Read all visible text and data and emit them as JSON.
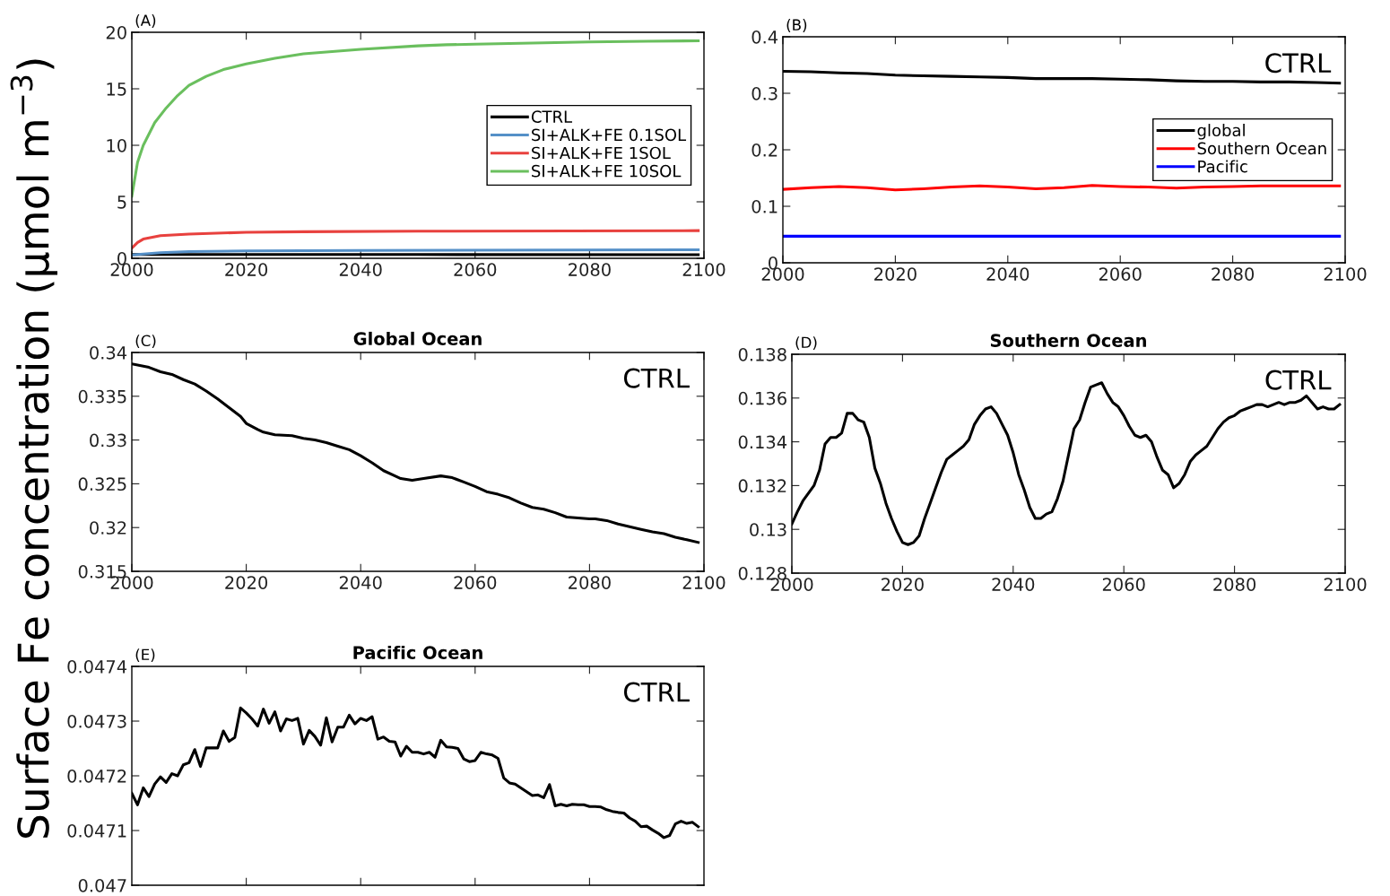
{
  "chart_data": [
    {
      "type": "line",
      "annotations": [
        "(A)"
      ],
      "ylabel": "Surface Fe concentration (μmol m$^{−3}$)",
      "xlim": [
        2000,
        2100
      ],
      "xticks": [
        2000,
        2020,
        2040,
        2060,
        2080,
        2100
      ],
      "ylim": [
        0,
        20
      ],
      "yticks": [
        0,
        5,
        10,
        15,
        20
      ],
      "legend": "right",
      "series": [
        {
          "name": "CTRL",
          "color": "#000000",
          "x": [
            2000,
            2050,
            2099
          ],
          "values": [
            0.34,
            0.33,
            0.32
          ]
        },
        {
          "name": "SI+ALK+FE 0.1SOL",
          "color": "#5590c8",
          "x": [
            2000,
            2005,
            2010,
            2020,
            2040,
            2099
          ],
          "values": [
            0.3,
            0.5,
            0.6,
            0.65,
            0.7,
            0.75
          ]
        },
        {
          "name": "SI+ALK+FE 1SOL",
          "color": "#e8413e",
          "x": [
            2000,
            2001,
            2002,
            2005,
            2010,
            2020,
            2030,
            2050,
            2099
          ],
          "values": [
            0.9,
            1.4,
            1.7,
            2.0,
            2.15,
            2.3,
            2.35,
            2.4,
            2.45
          ]
        },
        {
          "name": "SI+ALK+FE 10SOL",
          "color": "#6abf5e",
          "x": [
            2000,
            2001,
            2002,
            2004,
            2006,
            2008,
            2010,
            2013,
            2016,
            2020,
            2025,
            2030,
            2035,
            2040,
            2050,
            2055,
            2060,
            2070,
            2080,
            2090,
            2099
          ],
          "values": [
            5.5,
            8.5,
            10,
            12,
            13.3,
            14.4,
            15.3,
            16.1,
            16.7,
            17.2,
            17.7,
            18.1,
            18.3,
            18.5,
            18.8,
            18.9,
            18.95,
            19.05,
            19.15,
            19.2,
            19.25
          ]
        }
      ]
    },
    {
      "type": "line",
      "annotations": [
        "(B)",
        "CTRL"
      ],
      "xlim": [
        2000,
        2100
      ],
      "xticks": [
        2000,
        2020,
        2040,
        2060,
        2080,
        2100
      ],
      "ylim": [
        0,
        0.4
      ],
      "yticks": [
        0,
        0.1,
        0.2,
        0.3,
        0.4
      ],
      "legend": "right",
      "series": [
        {
          "name": "global",
          "color": "#000000",
          "x": [
            2000,
            2005,
            2010,
            2015,
            2020,
            2025,
            2030,
            2035,
            2040,
            2045,
            2050,
            2055,
            2060,
            2065,
            2070,
            2075,
            2080,
            2085,
            2090,
            2095,
            2099
          ],
          "values": [
            0.339,
            0.338,
            0.336,
            0.335,
            0.332,
            0.331,
            0.33,
            0.329,
            0.328,
            0.326,
            0.326,
            0.326,
            0.325,
            0.324,
            0.322,
            0.321,
            0.321,
            0.32,
            0.32,
            0.319,
            0.318
          ]
        },
        {
          "name": "Southern Ocean",
          "color": "#ff0000",
          "x": [
            2000,
            2005,
            2010,
            2015,
            2020,
            2025,
            2030,
            2035,
            2040,
            2045,
            2050,
            2055,
            2060,
            2065,
            2070,
            2075,
            2080,
            2085,
            2090,
            2095,
            2099
          ],
          "values": [
            0.13,
            0.133,
            0.135,
            0.133,
            0.129,
            0.131,
            0.134,
            0.136,
            0.134,
            0.131,
            0.133,
            0.137,
            0.135,
            0.134,
            0.132,
            0.134,
            0.135,
            0.136,
            0.136,
            0.136,
            0.136
          ]
        },
        {
          "name": "Pacific",
          "color": "#0000ff",
          "x": [
            2000,
            2099
          ],
          "values": [
            0.047,
            0.047
          ]
        }
      ]
    },
    {
      "type": "line",
      "title": "Global Ocean",
      "annotations": [
        "(C)",
        "CTRL"
      ],
      "xlim": [
        2000,
        2100
      ],
      "xticks": [
        2000,
        2020,
        2040,
        2060,
        2080,
        2100
      ],
      "ylim": [
        0.315,
        0.34
      ],
      "yticks": [
        0.315,
        0.32,
        0.325,
        0.33,
        0.335,
        0.34
      ],
      "series": [
        {
          "color": "#000000",
          "x": [
            2000,
            2003,
            2005,
            2007,
            2009,
            2011,
            2013,
            2015,
            2017,
            2019,
            2020,
            2022,
            2023,
            2025,
            2028,
            2030,
            2032,
            2034,
            2036,
            2038,
            2040,
            2042,
            2044,
            2046,
            2047,
            2049,
            2051,
            2054,
            2056,
            2058,
            2060,
            2062,
            2064,
            2066,
            2068,
            2070,
            2072,
            2074,
            2076,
            2078,
            2080,
            2081,
            2083,
            2085,
            2087,
            2089,
            2091,
            2093,
            2095,
            2097,
            2099
          ],
          "values": [
            0.3387,
            0.3383,
            0.3378,
            0.3375,
            0.3369,
            0.3364,
            0.3356,
            0.3347,
            0.3337,
            0.3327,
            0.3319,
            0.3312,
            0.3309,
            0.3306,
            0.3305,
            0.3302,
            0.33,
            0.3297,
            0.3293,
            0.3289,
            0.3282,
            0.3274,
            0.3265,
            0.3259,
            0.3256,
            0.3254,
            0.3256,
            0.3259,
            0.3257,
            0.3252,
            0.3247,
            0.3241,
            0.3238,
            0.3234,
            0.3228,
            0.3223,
            0.3221,
            0.3217,
            0.3212,
            0.3211,
            0.321,
            0.321,
            0.3208,
            0.3204,
            0.3201,
            0.3198,
            0.3195,
            0.3193,
            0.3189,
            0.3186,
            0.3183
          ]
        }
      ]
    },
    {
      "type": "line",
      "title": "Southern Ocean",
      "annotations": [
        "(D)",
        "CTRL"
      ],
      "xlim": [
        2000,
        2100
      ],
      "xticks": [
        2000,
        2020,
        2040,
        2060,
        2080,
        2100
      ],
      "ylim": [
        0.128,
        0.138
      ],
      "yticks": [
        0.128,
        0.13,
        0.132,
        0.134,
        0.136,
        0.138
      ],
      "series": [
        {
          "color": "#000000",
          "x": [
            2000,
            2001,
            2002,
            2004,
            2005,
            2006,
            2007,
            2008,
            2009,
            2010,
            2011,
            2012,
            2013,
            2014,
            2015,
            2016,
            2017,
            2018,
            2019,
            2020,
            2021,
            2022,
            2023,
            2024,
            2025,
            2026,
            2027,
            2028,
            2029,
            2030,
            2031,
            2032,
            2033,
            2034,
            2035,
            2036,
            2037,
            2038,
            2039,
            2040,
            2041,
            2042,
            2043,
            2044,
            2045,
            2046,
            2047,
            2048,
            2049,
            2050,
            2051,
            2052,
            2053,
            2054,
            2055,
            2056,
            2057,
            2058,
            2059,
            2060,
            2061,
            2062,
            2063,
            2064,
            2065,
            2066,
            2067,
            2068,
            2069,
            2070,
            2071,
            2072,
            2073,
            2074,
            2075,
            2076,
            2077,
            2078,
            2079,
            2080,
            2081,
            2082,
            2083,
            2084,
            2085,
            2086,
            2087,
            2088,
            2089,
            2090,
            2091,
            2092,
            2093,
            2094,
            2095,
            2096,
            2097,
            2098,
            2099
          ],
          "values": [
            0.13025,
            0.1308,
            0.1313,
            0.132,
            0.1327,
            0.1339,
            0.1342,
            0.1342,
            0.1344,
            0.1353,
            0.1353,
            0.135,
            0.1349,
            0.1342,
            0.1328,
            0.1321,
            0.1312,
            0.1305,
            0.1299,
            0.1294,
            0.1293,
            0.1294,
            0.1297,
            0.1305,
            0.1312,
            0.1319,
            0.1326,
            0.1332,
            0.1334,
            0.1336,
            0.1338,
            0.1341,
            0.1348,
            0.1352,
            0.1355,
            0.1356,
            0.1353,
            0.1348,
            0.1343,
            0.1335,
            0.1325,
            0.1318,
            0.131,
            0.1305,
            0.1305,
            0.1307,
            0.1308,
            0.1314,
            0.1322,
            0.1334,
            0.1346,
            0.135,
            0.1358,
            0.1365,
            0.1366,
            0.1367,
            0.1362,
            0.1358,
            0.1356,
            0.1352,
            0.1347,
            0.1343,
            0.1342,
            0.1343,
            0.134,
            0.1333,
            0.1327,
            0.1325,
            0.1319,
            0.1321,
            0.1325,
            0.1331,
            0.1334,
            0.1336,
            0.1338,
            0.1342,
            0.1346,
            0.1349,
            0.1351,
            0.1352,
            0.1354,
            0.1355,
            0.1356,
            0.1357,
            0.1357,
            0.1356,
            0.1357,
            0.1358,
            0.1357,
            0.1358,
            0.1358,
            0.1359,
            0.1361,
            0.1358,
            0.1355,
            0.1356,
            0.1355,
            0.1355,
            0.1357
          ]
        }
      ]
    },
    {
      "type": "line",
      "title": "Pacific Ocean",
      "annotations": [
        "(E)",
        "CTRL"
      ],
      "tick_labels": "y",
      "xlim": [
        2000,
        2100
      ],
      "xticks": [
        {
          "value": 2020,
          "label": null
        },
        {
          "value": 2040,
          "label": null
        },
        {
          "value": 2060,
          "label": null
        },
        {
          "value": 2080,
          "label": null
        }
      ],
      "ylim": [
        0.047,
        0.0474
      ],
      "yticks": [
        0.047,
        0.0471,
        0.0472,
        0.0473,
        0.0474
      ],
      "series": [
        {
          "color": "#000000",
          "x": [
            2000,
            2001,
            2002,
            2003,
            2004,
            2005,
            2006,
            2007,
            2008,
            2009,
            2010,
            2011,
            2012,
            2013,
            2014,
            2015,
            2016,
            2017,
            2018,
            2019,
            2020,
            2021,
            2022,
            2023,
            2024,
            2025,
            2026,
            2027,
            2028,
            2029,
            2030,
            2031,
            2032,
            2033,
            2034,
            2035,
            2036,
            2037,
            2038,
            2039,
            2040,
            2041,
            2042,
            2043,
            2044,
            2045,
            2046,
            2047,
            2048,
            2049,
            2050,
            2051,
            2052,
            2053,
            2054,
            2055,
            2056,
            2057,
            2058,
            2059,
            2060,
            2061,
            2062,
            2063,
            2064,
            2065,
            2066,
            2067,
            2068,
            2069,
            2070,
            2071,
            2072,
            2073,
            2074,
            2075,
            2076,
            2077,
            2078,
            2079,
            2080,
            2081,
            2082,
            2083,
            2084,
            2085,
            2086,
            2087,
            2088,
            2089,
            2090,
            2091,
            2092,
            2093,
            2094,
            2095,
            2096,
            2097,
            2098,
            2099
          ],
          "values": [
            0.047168,
            0.047147,
            0.047178,
            0.047162,
            0.047185,
            0.047198,
            0.047188,
            0.047204,
            0.0472,
            0.04722,
            0.047224,
            0.047248,
            0.047217,
            0.047251,
            0.047251,
            0.047251,
            0.047282,
            0.047263,
            0.04727,
            0.047324,
            0.047315,
            0.047304,
            0.047291,
            0.047322,
            0.047296,
            0.047317,
            0.047282,
            0.047304,
            0.047301,
            0.047305,
            0.047258,
            0.047283,
            0.047272,
            0.047256,
            0.047306,
            0.047262,
            0.047289,
            0.047289,
            0.047311,
            0.047295,
            0.047305,
            0.047301,
            0.047308,
            0.047267,
            0.047271,
            0.047263,
            0.047262,
            0.047236,
            0.047254,
            0.047243,
            0.047243,
            0.04724,
            0.047243,
            0.047234,
            0.047265,
            0.047253,
            0.047252,
            0.04725,
            0.047231,
            0.047226,
            0.047228,
            0.047243,
            0.04724,
            0.047238,
            0.047232,
            0.047196,
            0.047187,
            0.047185,
            0.047178,
            0.047171,
            0.047164,
            0.047165,
            0.04716,
            0.047184,
            0.047145,
            0.047148,
            0.047145,
            0.047148,
            0.047147,
            0.047147,
            0.047144,
            0.047144,
            0.047143,
            0.047138,
            0.047135,
            0.047133,
            0.047132,
            0.047123,
            0.047117,
            0.047107,
            0.047108,
            0.047101,
            0.047095,
            0.047087,
            0.047091,
            0.047112,
            0.047117,
            0.047113,
            0.047115,
            0.047107
          ]
        }
      ]
    }
  ]
}
